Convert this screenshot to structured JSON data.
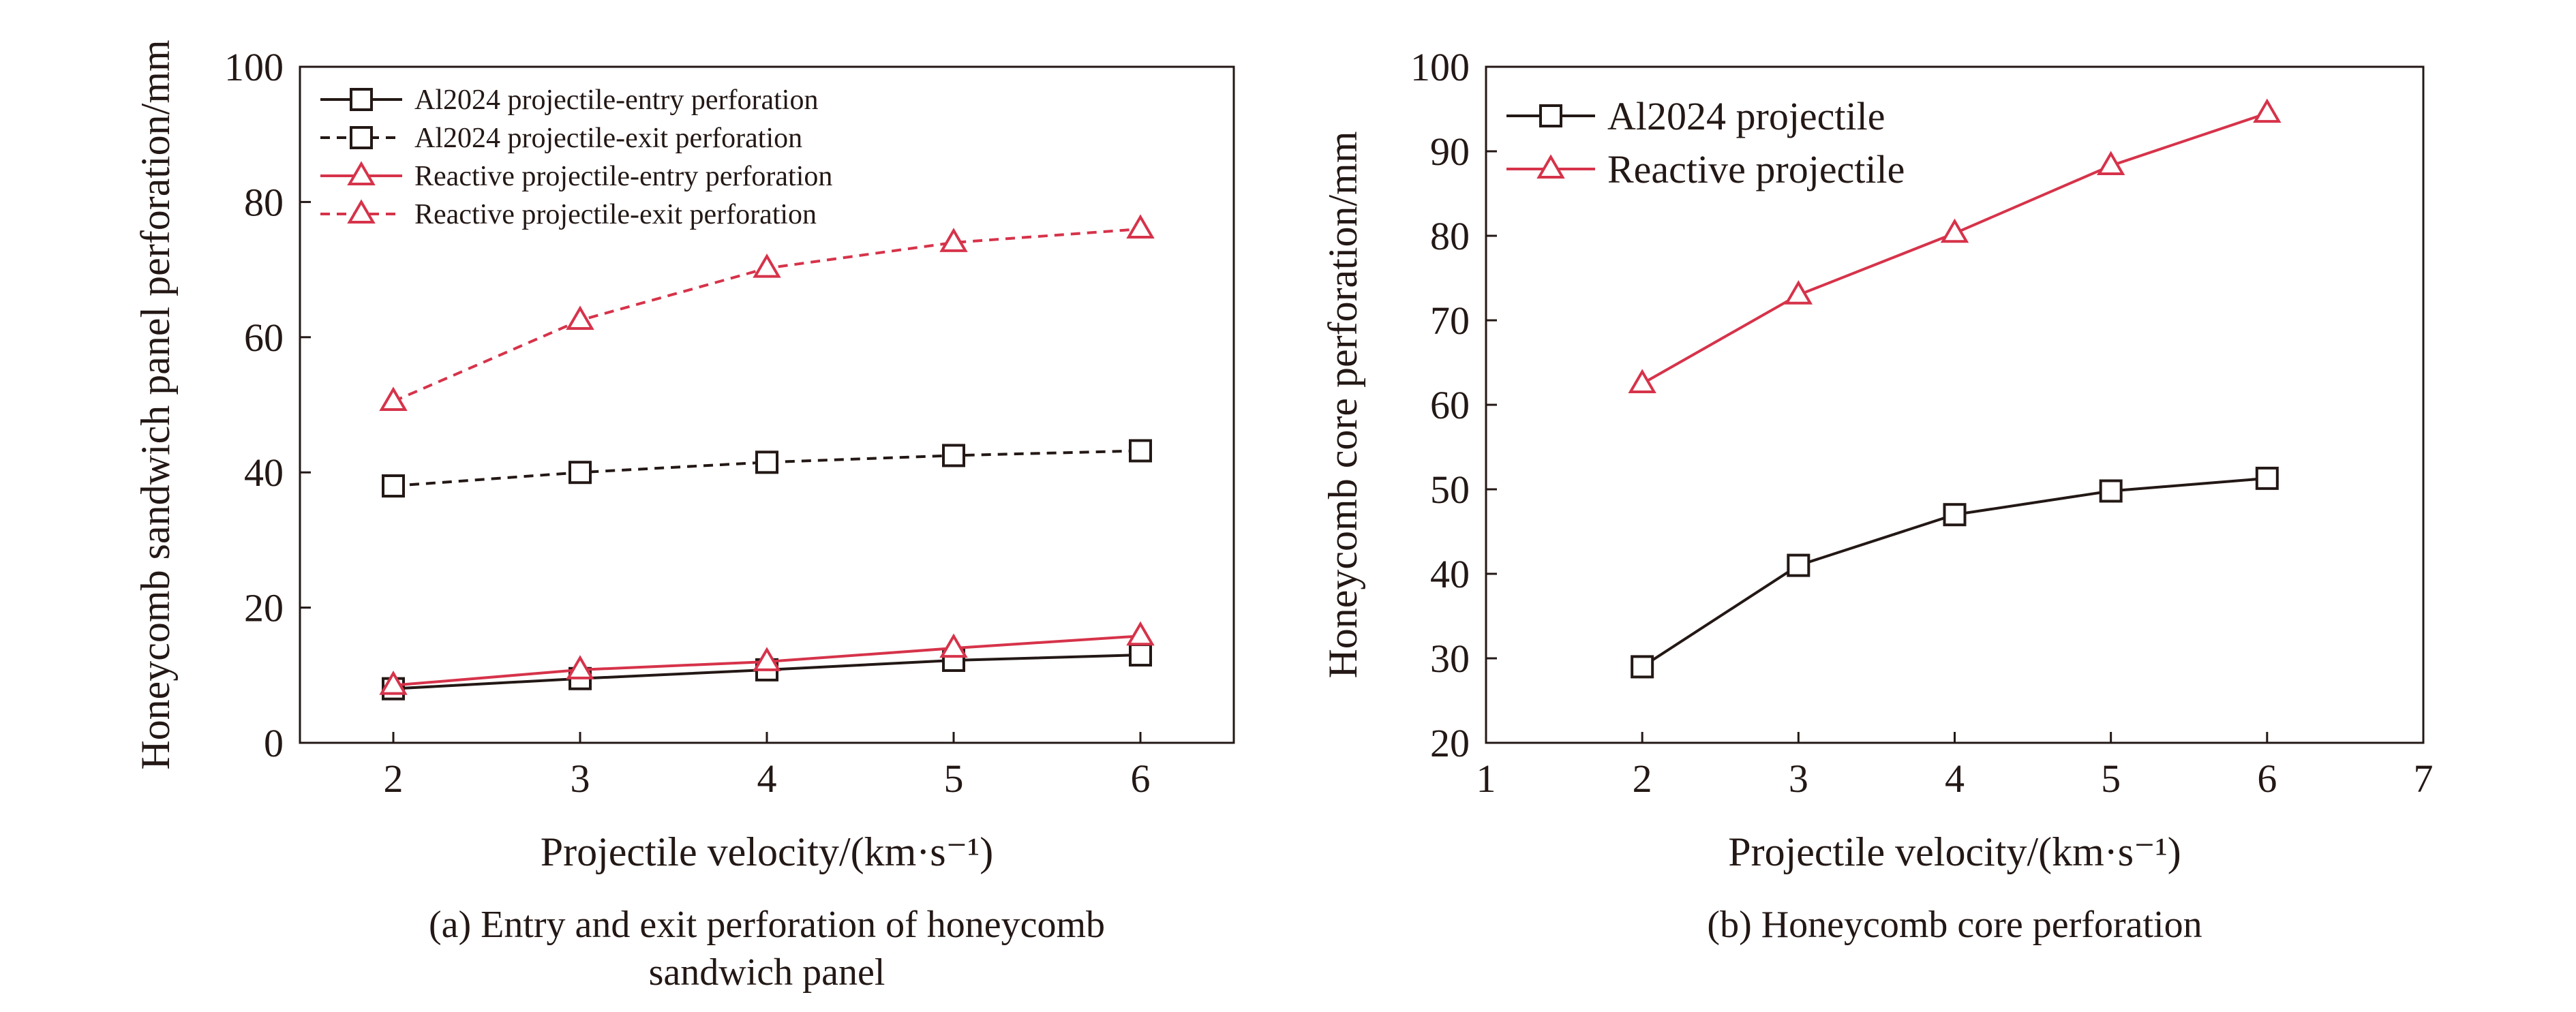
{
  "colors": {
    "al2024": "#231815",
    "reactive": "#d6334a",
    "axis": "#231815",
    "background": "#ffffff"
  },
  "chart_data": [
    {
      "type": "line",
      "caption": "(a) Entry and exit perforation of honeycomb sandwich panel",
      "caption_lines": [
        "(a) Entry and exit perforation of honeycomb",
        "sandwich panel"
      ],
      "xlabel": "Projectile velocity/(km·s⁻¹)",
      "ylabel": "Honeycomb sandwich panel perforation/mm",
      "xlim": [
        1.5,
        6.5
      ],
      "ylim": [
        0,
        100
      ],
      "xticks": [
        2,
        3,
        4,
        5,
        6
      ],
      "yticks": [
        0,
        20,
        40,
        60,
        80,
        100
      ],
      "grid": false,
      "legend_position": "top-left",
      "x": [
        2,
        3,
        4,
        5,
        6
      ],
      "series": [
        {
          "name": "Al2024 projectile-entry perforation",
          "color": "al2024",
          "marker": "square",
          "dash": "solid",
          "values": [
            8,
            9.5,
            10.8,
            12.2,
            13
          ]
        },
        {
          "name": "Al2024 projectile-exit perforation",
          "color": "al2024",
          "marker": "square",
          "dash": "dashed",
          "values": [
            38,
            40,
            41.5,
            42.5,
            43.2
          ]
        },
        {
          "name": "Reactive projectile-entry perforation",
          "color": "reactive",
          "marker": "triangle",
          "dash": "solid",
          "values": [
            8.5,
            10.8,
            12,
            14,
            15.8
          ]
        },
        {
          "name": "Reactive projectile-exit perforation",
          "color": "reactive",
          "marker": "triangle",
          "dash": "dashed",
          "values": [
            50.5,
            62.5,
            70.2,
            74,
            76
          ]
        }
      ]
    },
    {
      "type": "line",
      "caption": "(b) Honeycomb core perforation",
      "caption_lines": [
        "(b) Honeycomb core perforation"
      ],
      "xlabel": "Projectile velocity/(km·s⁻¹)",
      "ylabel": "Honeycomb core perforation/mm",
      "xlim": [
        1,
        7
      ],
      "ylim": [
        20,
        100
      ],
      "xticks": [
        1,
        2,
        3,
        4,
        5,
        6,
        7
      ],
      "yticks": [
        20,
        30,
        40,
        50,
        60,
        70,
        80,
        90,
        100
      ],
      "grid": false,
      "legend_position": "top-left",
      "x": [
        2,
        3,
        4,
        5,
        6
      ],
      "series": [
        {
          "name": "Al2024 projectile",
          "color": "al2024",
          "marker": "square",
          "dash": "solid",
          "values": [
            29,
            41,
            47,
            49.8,
            51.3
          ]
        },
        {
          "name": "Reactive projectile",
          "color": "reactive",
          "marker": "triangle",
          "dash": "solid",
          "values": [
            62.5,
            73,
            80.3,
            88.3,
            94.5
          ]
        }
      ]
    }
  ]
}
